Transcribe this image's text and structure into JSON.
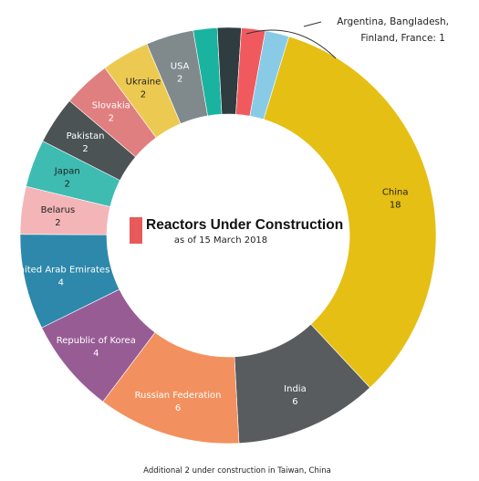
{
  "chart_data": {
    "type": "pie",
    "title": "Reactors Under Construction",
    "subtitle": "as of 15 March 2018",
    "accent_color": "#e85a5a",
    "slices": [
      {
        "label": "China",
        "value": 18,
        "color": "#e5bf14",
        "text_color": "#222222",
        "show_label": true
      },
      {
        "label": "India",
        "value": 6,
        "color": "#585c5e",
        "text_color": "#ffffff",
        "show_label": true
      },
      {
        "label": "Russian Federation",
        "value": 6,
        "color": "#f2915f",
        "text_color": "#ffffff",
        "show_label": true
      },
      {
        "label": "Republic of Korea",
        "value": 4,
        "color": "#985c95",
        "text_color": "#ffffff",
        "show_label": true
      },
      {
        "label": "United Arab Emirates",
        "value": 4,
        "color": "#2d88ab",
        "text_color": "#ffffff",
        "show_label": true
      },
      {
        "label": "Belarus",
        "value": 2,
        "color": "#f3b5b7",
        "text_color": "#222222",
        "show_label": true
      },
      {
        "label": "Japan",
        "value": 2,
        "color": "#3ebcb2",
        "text_color": "#222222",
        "show_label": true
      },
      {
        "label": "Pakistan",
        "value": 2,
        "color": "#4b5355",
        "text_color": "#ffffff",
        "show_label": true
      },
      {
        "label": "Slovakia",
        "value": 2,
        "color": "#e07f7f",
        "text_color": "#ffffff",
        "show_label": true
      },
      {
        "label": "Ukraine",
        "value": 2,
        "color": "#ecca52",
        "text_color": "#222222",
        "show_label": true
      },
      {
        "label": "USA",
        "value": 2,
        "color": "#808a8c",
        "text_color": "#ffffff",
        "show_label": true
      },
      {
        "label": "Argentina",
        "value": 1,
        "color": "#19b39f",
        "text_color": "#ffffff",
        "show_label": false
      },
      {
        "label": "Bangladesh",
        "value": 1,
        "color": "#2f3c40",
        "text_color": "#ffffff",
        "show_label": false
      },
      {
        "label": "Finland",
        "value": 1,
        "color": "#f05a5e",
        "text_color": "#ffffff",
        "show_label": false
      },
      {
        "label": "France",
        "value": 1,
        "color": "#89cbe6",
        "text_color": "#ffffff",
        "show_label": false
      }
    ],
    "callout": {
      "line1": "Argentina, Bangladesh,",
      "line2": "Finland, France: 1"
    },
    "footnote": "Additional 2 under construction in Taiwan, China"
  }
}
